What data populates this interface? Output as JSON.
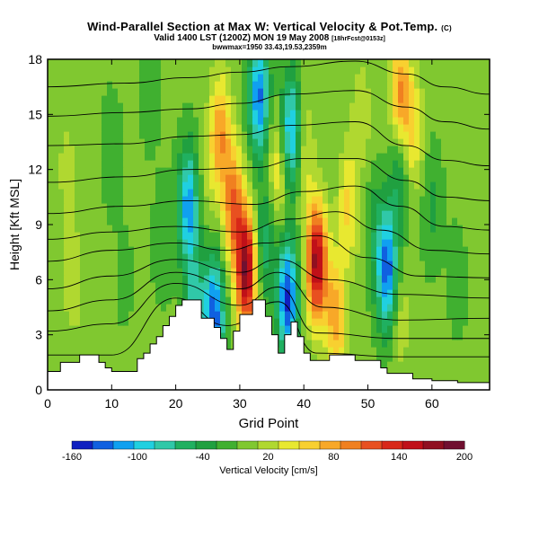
{
  "header": {
    "title": "Wind-Parallel Section at Max W: Vertical Velocity & Pot.Temp.",
    "title_mark": "(C)",
    "subtitle": "Valid 1400 LST (1200Z) MON 19 May 2008",
    "subtitle_note": "[18hrFcst@0153z]",
    "line3": "bwwmax=1950 33.43,19.53,2359m"
  },
  "chart_data": {
    "type": "heatmap",
    "xlabel": "Grid Point",
    "ylabel": "Height [Kft MSL]",
    "xlim": [
      0,
      69
    ],
    "ylim": [
      0,
      18
    ],
    "x_ticks": [
      "0",
      "10",
      "20",
      "30",
      "40",
      "50",
      "60"
    ],
    "y_ticks": [
      "0",
      "3",
      "6",
      "9",
      "12",
      "15",
      "18"
    ],
    "colorbar": {
      "label": "Vertical Velocity [cm/s]",
      "tick_labels": [
        "-160",
        "-100",
        "-40",
        "20",
        "80",
        "140",
        "200"
      ],
      "levels": [
        -160,
        -140,
        -120,
        -100,
        -80,
        -60,
        -40,
        -20,
        0,
        20,
        40,
        60,
        80,
        100,
        120,
        140,
        160,
        180,
        200
      ],
      "colors": [
        "#1020c0",
        "#1060e0",
        "#10a0f0",
        "#20d0e0",
        "#30c8a8",
        "#20b060",
        "#20a040",
        "#40b030",
        "#80c830",
        "#b0d830",
        "#e8e830",
        "#f8d030",
        "#f8a828",
        "#f08020",
        "#e85020",
        "#d82818",
        "#c01018",
        "#901020",
        "#701030"
      ]
    },
    "background_value": 5,
    "velocity_cells": [
      {
        "x": 4,
        "y": 6,
        "value": 30
      },
      {
        "x": 3,
        "y": 12,
        "value": 22
      },
      {
        "x": 10,
        "y": 13,
        "value": -20
      },
      {
        "x": 16,
        "y": 16,
        "value": -15
      },
      {
        "x": 12,
        "y": 6,
        "value": -10
      },
      {
        "x": 18,
        "y": 8,
        "value": -20
      },
      {
        "x": 22,
        "y": 10,
        "value": -120
      },
      {
        "x": 23,
        "y": 4,
        "value": -80
      },
      {
        "x": 25,
        "y": 12,
        "value": 20
      },
      {
        "x": 26,
        "y": 4,
        "value": -140
      },
      {
        "x": 27,
        "y": 14,
        "value": 90
      },
      {
        "x": 29,
        "y": 10,
        "value": 110
      },
      {
        "x": 31,
        "y": 6.5,
        "value": 195
      },
      {
        "x": 33,
        "y": 16,
        "value": -130
      },
      {
        "x": 34,
        "y": 8,
        "value": -60
      },
      {
        "x": 36,
        "y": 12,
        "value": 60
      },
      {
        "x": 37.5,
        "y": 5,
        "value": -150
      },
      {
        "x": 38,
        "y": 14,
        "value": -120
      },
      {
        "x": 42,
        "y": 7,
        "value": 185
      },
      {
        "x": 40,
        "y": 13,
        "value": 40
      },
      {
        "x": 45,
        "y": 4,
        "value": 90
      },
      {
        "x": 47,
        "y": 10,
        "value": 60
      },
      {
        "x": 49,
        "y": 15,
        "value": 30
      },
      {
        "x": 51,
        "y": 9,
        "value": -30
      },
      {
        "x": 53,
        "y": 6.5,
        "value": -140
      },
      {
        "x": 55,
        "y": 4,
        "value": 30
      },
      {
        "x": 55,
        "y": 12,
        "value": -60
      },
      {
        "x": 55,
        "y": 16,
        "value": 100
      },
      {
        "x": 57,
        "y": 14,
        "value": 60
      },
      {
        "x": 60,
        "y": 10,
        "value": -30
      },
      {
        "x": 64,
        "y": 6,
        "value": -15
      },
      {
        "x": 66,
        "y": 13,
        "value": 10
      }
    ],
    "terrain": [
      [
        0,
        1.0
      ],
      [
        2,
        1.0
      ],
      [
        2,
        1.5
      ],
      [
        5,
        1.5
      ],
      [
        5,
        1.9
      ],
      [
        8,
        1.9
      ],
      [
        8,
        1.5
      ],
      [
        9,
        1.5
      ],
      [
        9,
        1.2
      ],
      [
        10,
        1.2
      ],
      [
        10,
        1.0
      ],
      [
        14,
        1.0
      ],
      [
        14,
        1.7
      ],
      [
        15,
        1.7
      ],
      [
        15,
        2.0
      ],
      [
        16,
        2.0
      ],
      [
        16,
        2.5
      ],
      [
        17,
        2.5
      ],
      [
        17,
        2.9
      ],
      [
        18,
        2.9
      ],
      [
        18,
        3.5
      ],
      [
        19,
        3.5
      ],
      [
        19,
        4.0
      ],
      [
        20,
        4.0
      ],
      [
        20,
        4.6
      ],
      [
        21,
        4.6
      ],
      [
        21,
        4.9
      ],
      [
        24,
        4.9
      ],
      [
        24,
        3.9
      ],
      [
        26,
        3.9
      ],
      [
        26,
        3.4
      ],
      [
        27,
        3.4
      ],
      [
        27,
        2.8
      ],
      [
        28,
        2.8
      ],
      [
        28,
        2.2
      ],
      [
        29,
        2.2
      ],
      [
        29,
        3.2
      ],
      [
        30,
        3.2
      ],
      [
        30,
        4.1
      ],
      [
        32,
        4.1
      ],
      [
        32,
        4.9
      ],
      [
        34,
        4.9
      ],
      [
        34,
        4.0
      ],
      [
        35,
        4.0
      ],
      [
        35,
        3.0
      ],
      [
        36,
        3.0
      ],
      [
        36,
        2.0
      ],
      [
        37,
        2.0
      ],
      [
        37,
        3.0
      ],
      [
        38,
        3.0
      ],
      [
        38,
        3.7
      ],
      [
        39,
        3.7
      ],
      [
        39,
        2.9
      ],
      [
        40,
        2.9
      ],
      [
        40,
        2.0
      ],
      [
        41,
        2.0
      ],
      [
        41,
        1.6
      ],
      [
        44,
        1.6
      ],
      [
        44,
        1.9
      ],
      [
        48,
        1.9
      ],
      [
        48,
        1.6
      ],
      [
        52,
        1.6
      ],
      [
        52,
        1.2
      ],
      [
        53,
        1.2
      ],
      [
        53,
        0.9
      ],
      [
        57,
        0.9
      ],
      [
        57,
        0.6
      ],
      [
        60,
        0.6
      ],
      [
        60,
        0.5
      ],
      [
        64,
        0.5
      ],
      [
        64,
        0.4
      ],
      [
        69,
        0.4
      ]
    ],
    "isentropes": [
      {
        "label": "",
        "points": [
          [
            0,
            1.9
          ],
          [
            10,
            1.9
          ],
          [
            20,
            5.0
          ],
          [
            28,
            3.5
          ],
          [
            36,
            4.8
          ],
          [
            42,
            2.0
          ],
          [
            55,
            1.8
          ],
          [
            69,
            1.8
          ]
        ]
      },
      {
        "label": "",
        "points": [
          [
            0,
            3.2
          ],
          [
            10,
            3.6
          ],
          [
            20,
            5.8
          ],
          [
            30,
            4.6
          ],
          [
            36,
            5.6
          ],
          [
            42,
            3.1
          ],
          [
            55,
            2.8
          ],
          [
            69,
            2.8
          ]
        ]
      },
      {
        "label": "",
        "points": [
          [
            0,
            4.3
          ],
          [
            10,
            4.9
          ],
          [
            20,
            6.4
          ],
          [
            30,
            5.5
          ],
          [
            36,
            6.4
          ],
          [
            43,
            4.5
          ],
          [
            55,
            3.8
          ],
          [
            69,
            3.9
          ]
        ]
      },
      {
        "label": "",
        "points": [
          [
            0,
            5.5
          ],
          [
            10,
            6.2
          ],
          [
            20,
            7.1
          ],
          [
            30,
            6.4
          ],
          [
            36,
            7.1
          ],
          [
            44,
            6.0
          ],
          [
            55,
            5.2
          ],
          [
            69,
            5.0
          ]
        ]
      },
      {
        "label": "",
        "points": [
          [
            0,
            7.0
          ],
          [
            10,
            7.6
          ],
          [
            20,
            8.0
          ],
          [
            28,
            7.6
          ],
          [
            34,
            8.0
          ],
          [
            42,
            8.4
          ],
          [
            50,
            7.2
          ],
          [
            58,
            6.2
          ],
          [
            69,
            6.1
          ]
        ]
      },
      {
        "label": "",
        "points": [
          [
            0,
            8.2
          ],
          [
            10,
            8.6
          ],
          [
            20,
            8.9
          ],
          [
            30,
            8.6
          ],
          [
            38,
            9.3
          ],
          [
            45,
            9.7
          ],
          [
            52,
            8.7
          ],
          [
            60,
            7.6
          ],
          [
            69,
            7.4
          ]
        ]
      },
      {
        "label": "",
        "points": [
          [
            0,
            9.6
          ],
          [
            12,
            10.0
          ],
          [
            22,
            10.3
          ],
          [
            32,
            10.1
          ],
          [
            40,
            10.8
          ],
          [
            48,
            11.1
          ],
          [
            55,
            10.0
          ],
          [
            62,
            8.9
          ],
          [
            69,
            8.7
          ]
        ]
      },
      {
        "label": "",
        "points": [
          [
            0,
            11.3
          ],
          [
            12,
            11.6
          ],
          [
            22,
            12.0
          ],
          [
            32,
            12.1
          ],
          [
            40,
            12.6
          ],
          [
            48,
            12.6
          ],
          [
            56,
            11.4
          ],
          [
            62,
            10.5
          ],
          [
            69,
            10.3
          ]
        ]
      },
      {
        "label": "",
        "points": [
          [
            0,
            13.3
          ],
          [
            12,
            13.4
          ],
          [
            22,
            13.8
          ],
          [
            30,
            13.9
          ],
          [
            38,
            14.4
          ],
          [
            48,
            14.6
          ],
          [
            56,
            13.3
          ],
          [
            62,
            12.5
          ],
          [
            69,
            12.2
          ]
        ]
      },
      {
        "label": "",
        "points": [
          [
            0,
            14.9
          ],
          [
            12,
            15.1
          ],
          [
            22,
            15.3
          ],
          [
            30,
            15.6
          ],
          [
            38,
            16.1
          ],
          [
            48,
            16.3
          ],
          [
            56,
            15.4
          ],
          [
            62,
            14.6
          ],
          [
            69,
            14.2
          ]
        ]
      },
      {
        "label": "",
        "points": [
          [
            0,
            16.5
          ],
          [
            12,
            16.7
          ],
          [
            22,
            17.0
          ],
          [
            30,
            17.3
          ],
          [
            38,
            17.6
          ],
          [
            48,
            17.9
          ],
          [
            56,
            17.2
          ],
          [
            62,
            16.5
          ],
          [
            69,
            16.1
          ]
        ]
      }
    ]
  }
}
